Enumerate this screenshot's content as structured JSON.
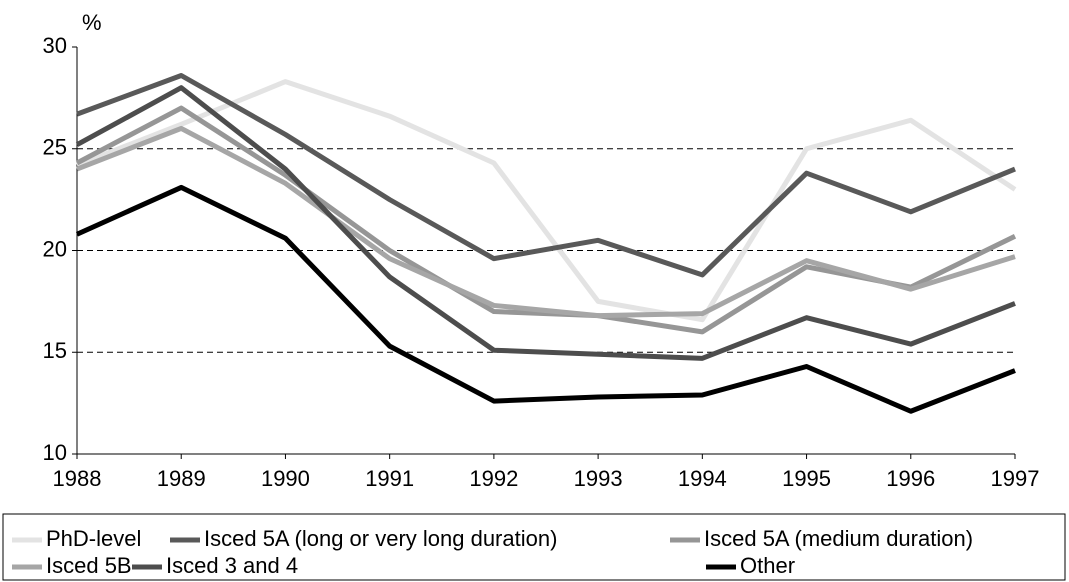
{
  "chart_data": {
    "type": "line",
    "y_label": "%",
    "x": [
      "1988",
      "1989",
      "1990",
      "1991",
      "1992",
      "1993",
      "1994",
      "1995",
      "1996",
      "1997"
    ],
    "ylim": [
      10,
      30
    ],
    "yticks": [
      10,
      15,
      20,
      25,
      30
    ],
    "grid": true,
    "series": [
      {
        "name": "PhD-level",
        "color": "#e3e3e3",
        "values": [
          24.2,
          26.2,
          28.3,
          26.6,
          24.3,
          17.5,
          16.6,
          25.0,
          26.4,
          23.0
        ]
      },
      {
        "name": "Isced 5A (long or very long duration)",
        "color": "#595959",
        "values": [
          26.7,
          28.6,
          25.7,
          22.5,
          19.6,
          20.5,
          18.8,
          23.8,
          21.9,
          24.0
        ]
      },
      {
        "name": "Isced 5A (medium duration)",
        "color": "#969696",
        "values": [
          24.3,
          27.0,
          23.7,
          20.0,
          17.0,
          16.8,
          16.0,
          19.2,
          18.2,
          20.7
        ]
      },
      {
        "name": "Isced 5B",
        "color": "#a6a6a6",
        "values": [
          24.0,
          26.0,
          23.3,
          19.6,
          17.3,
          16.8,
          16.9,
          19.5,
          18.1,
          19.7
        ]
      },
      {
        "name": "Isced 3 and 4",
        "color": "#4d4d4d",
        "values": [
          25.2,
          28.0,
          24.0,
          18.7,
          15.1,
          14.9,
          14.7,
          16.7,
          15.4,
          17.4
        ]
      },
      {
        "name": "Other",
        "color": "#000000",
        "values": [
          20.8,
          23.1,
          20.6,
          15.3,
          12.6,
          12.8,
          12.9,
          14.3,
          12.1,
          14.1
        ]
      }
    ]
  }
}
